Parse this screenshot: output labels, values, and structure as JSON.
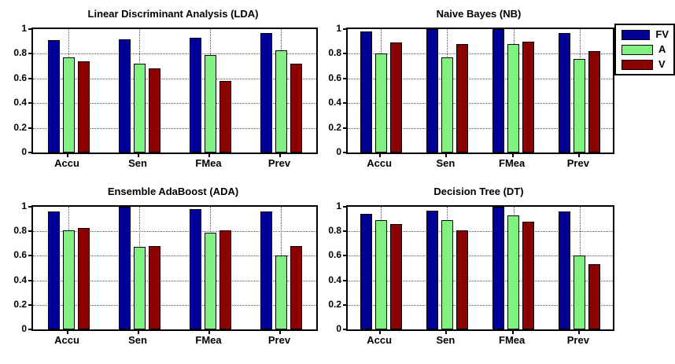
{
  "figure": {
    "background": "#ffffff",
    "series_colors": {
      "FV": "#000099",
      "A": "#80F080",
      "V": "#8B0000"
    }
  },
  "legend": {
    "entries": [
      {
        "label": "FV",
        "color": "#000099"
      },
      {
        "label": "A",
        "color": "#80F080"
      },
      {
        "label": "V",
        "color": "#8B0000"
      }
    ]
  },
  "chart_data": [
    {
      "type": "bar",
      "title": "Linear Discriminant Analysis (LDA)",
      "categories": [
        "Accu",
        "Sen",
        "FMea",
        "Prev"
      ],
      "series": [
        {
          "name": "FV",
          "color": "#000099",
          "values": [
            0.91,
            0.92,
            0.93,
            0.97
          ]
        },
        {
          "name": "A",
          "color": "#80F080",
          "values": [
            0.77,
            0.72,
            0.79,
            0.83
          ]
        },
        {
          "name": "V",
          "color": "#8B0000",
          "values": [
            0.74,
            0.68,
            0.58,
            0.72
          ]
        }
      ],
      "xlabel": "",
      "ylabel": "",
      "ylim": [
        0,
        1
      ],
      "yticks": [
        0,
        0.2,
        0.4,
        0.6,
        0.8,
        1
      ],
      "ytick_labels": [
        "0",
        "0.2",
        "0.4",
        "0.6",
        "0.8",
        "1"
      ],
      "grid": true,
      "legend_position": "outside-top-right"
    },
    {
      "type": "bar",
      "title": "Naive Bayes (NB)",
      "categories": [
        "Accu",
        "Sen",
        "FMea",
        "Prev"
      ],
      "series": [
        {
          "name": "FV",
          "color": "#000099",
          "values": [
            0.98,
            1.0,
            1.0,
            0.97
          ]
        },
        {
          "name": "A",
          "color": "#80F080",
          "values": [
            0.8,
            0.77,
            0.88,
            0.76
          ]
        },
        {
          "name": "V",
          "color": "#8B0000",
          "values": [
            0.89,
            0.88,
            0.9,
            0.82
          ]
        }
      ],
      "xlabel": "",
      "ylabel": "",
      "ylim": [
        0,
        1
      ],
      "yticks": [
        0,
        0.2,
        0.4,
        0.6,
        0.8,
        1
      ],
      "ytick_labels": [
        "0",
        "0.2",
        "0.4",
        "0.6",
        "0.8",
        "1"
      ],
      "grid": true,
      "legend_position": "outside-top-right"
    },
    {
      "type": "bar",
      "title": "Ensemble AdaBoost (ADA)",
      "categories": [
        "Accu",
        "Sen",
        "FMea",
        "Prev"
      ],
      "series": [
        {
          "name": "FV",
          "color": "#000099",
          "values": [
            0.96,
            1.0,
            0.98,
            0.96
          ]
        },
        {
          "name": "A",
          "color": "#80F080",
          "values": [
            0.81,
            0.67,
            0.79,
            0.6
          ]
        },
        {
          "name": "V",
          "color": "#8B0000",
          "values": [
            0.83,
            0.68,
            0.81,
            0.68
          ]
        }
      ],
      "xlabel": "",
      "ylabel": "",
      "ylim": [
        0,
        1
      ],
      "yticks": [
        0,
        0.2,
        0.4,
        0.6,
        0.8,
        1
      ],
      "ytick_labels": [
        "0",
        "0.2",
        "0.4",
        "0.6",
        "0.8",
        "1"
      ],
      "grid": true,
      "legend_position": "none"
    },
    {
      "type": "bar",
      "title": "Decision Tree (DT)",
      "categories": [
        "Accu",
        "Sen",
        "FMea",
        "Prev"
      ],
      "series": [
        {
          "name": "FV",
          "color": "#000099",
          "values": [
            0.94,
            0.97,
            1.0,
            0.96
          ]
        },
        {
          "name": "A",
          "color": "#80F080",
          "values": [
            0.89,
            0.89,
            0.93,
            0.6
          ]
        },
        {
          "name": "V",
          "color": "#8B0000",
          "values": [
            0.86,
            0.81,
            0.88,
            0.53
          ]
        }
      ],
      "xlabel": "",
      "ylabel": "",
      "ylim": [
        0,
        1
      ],
      "yticks": [
        0,
        0.2,
        0.4,
        0.6,
        0.8,
        1
      ],
      "ytick_labels": [
        "0",
        "0.2",
        "0.4",
        "0.6",
        "0.8",
        "1"
      ],
      "grid": true,
      "legend_position": "none"
    }
  ]
}
